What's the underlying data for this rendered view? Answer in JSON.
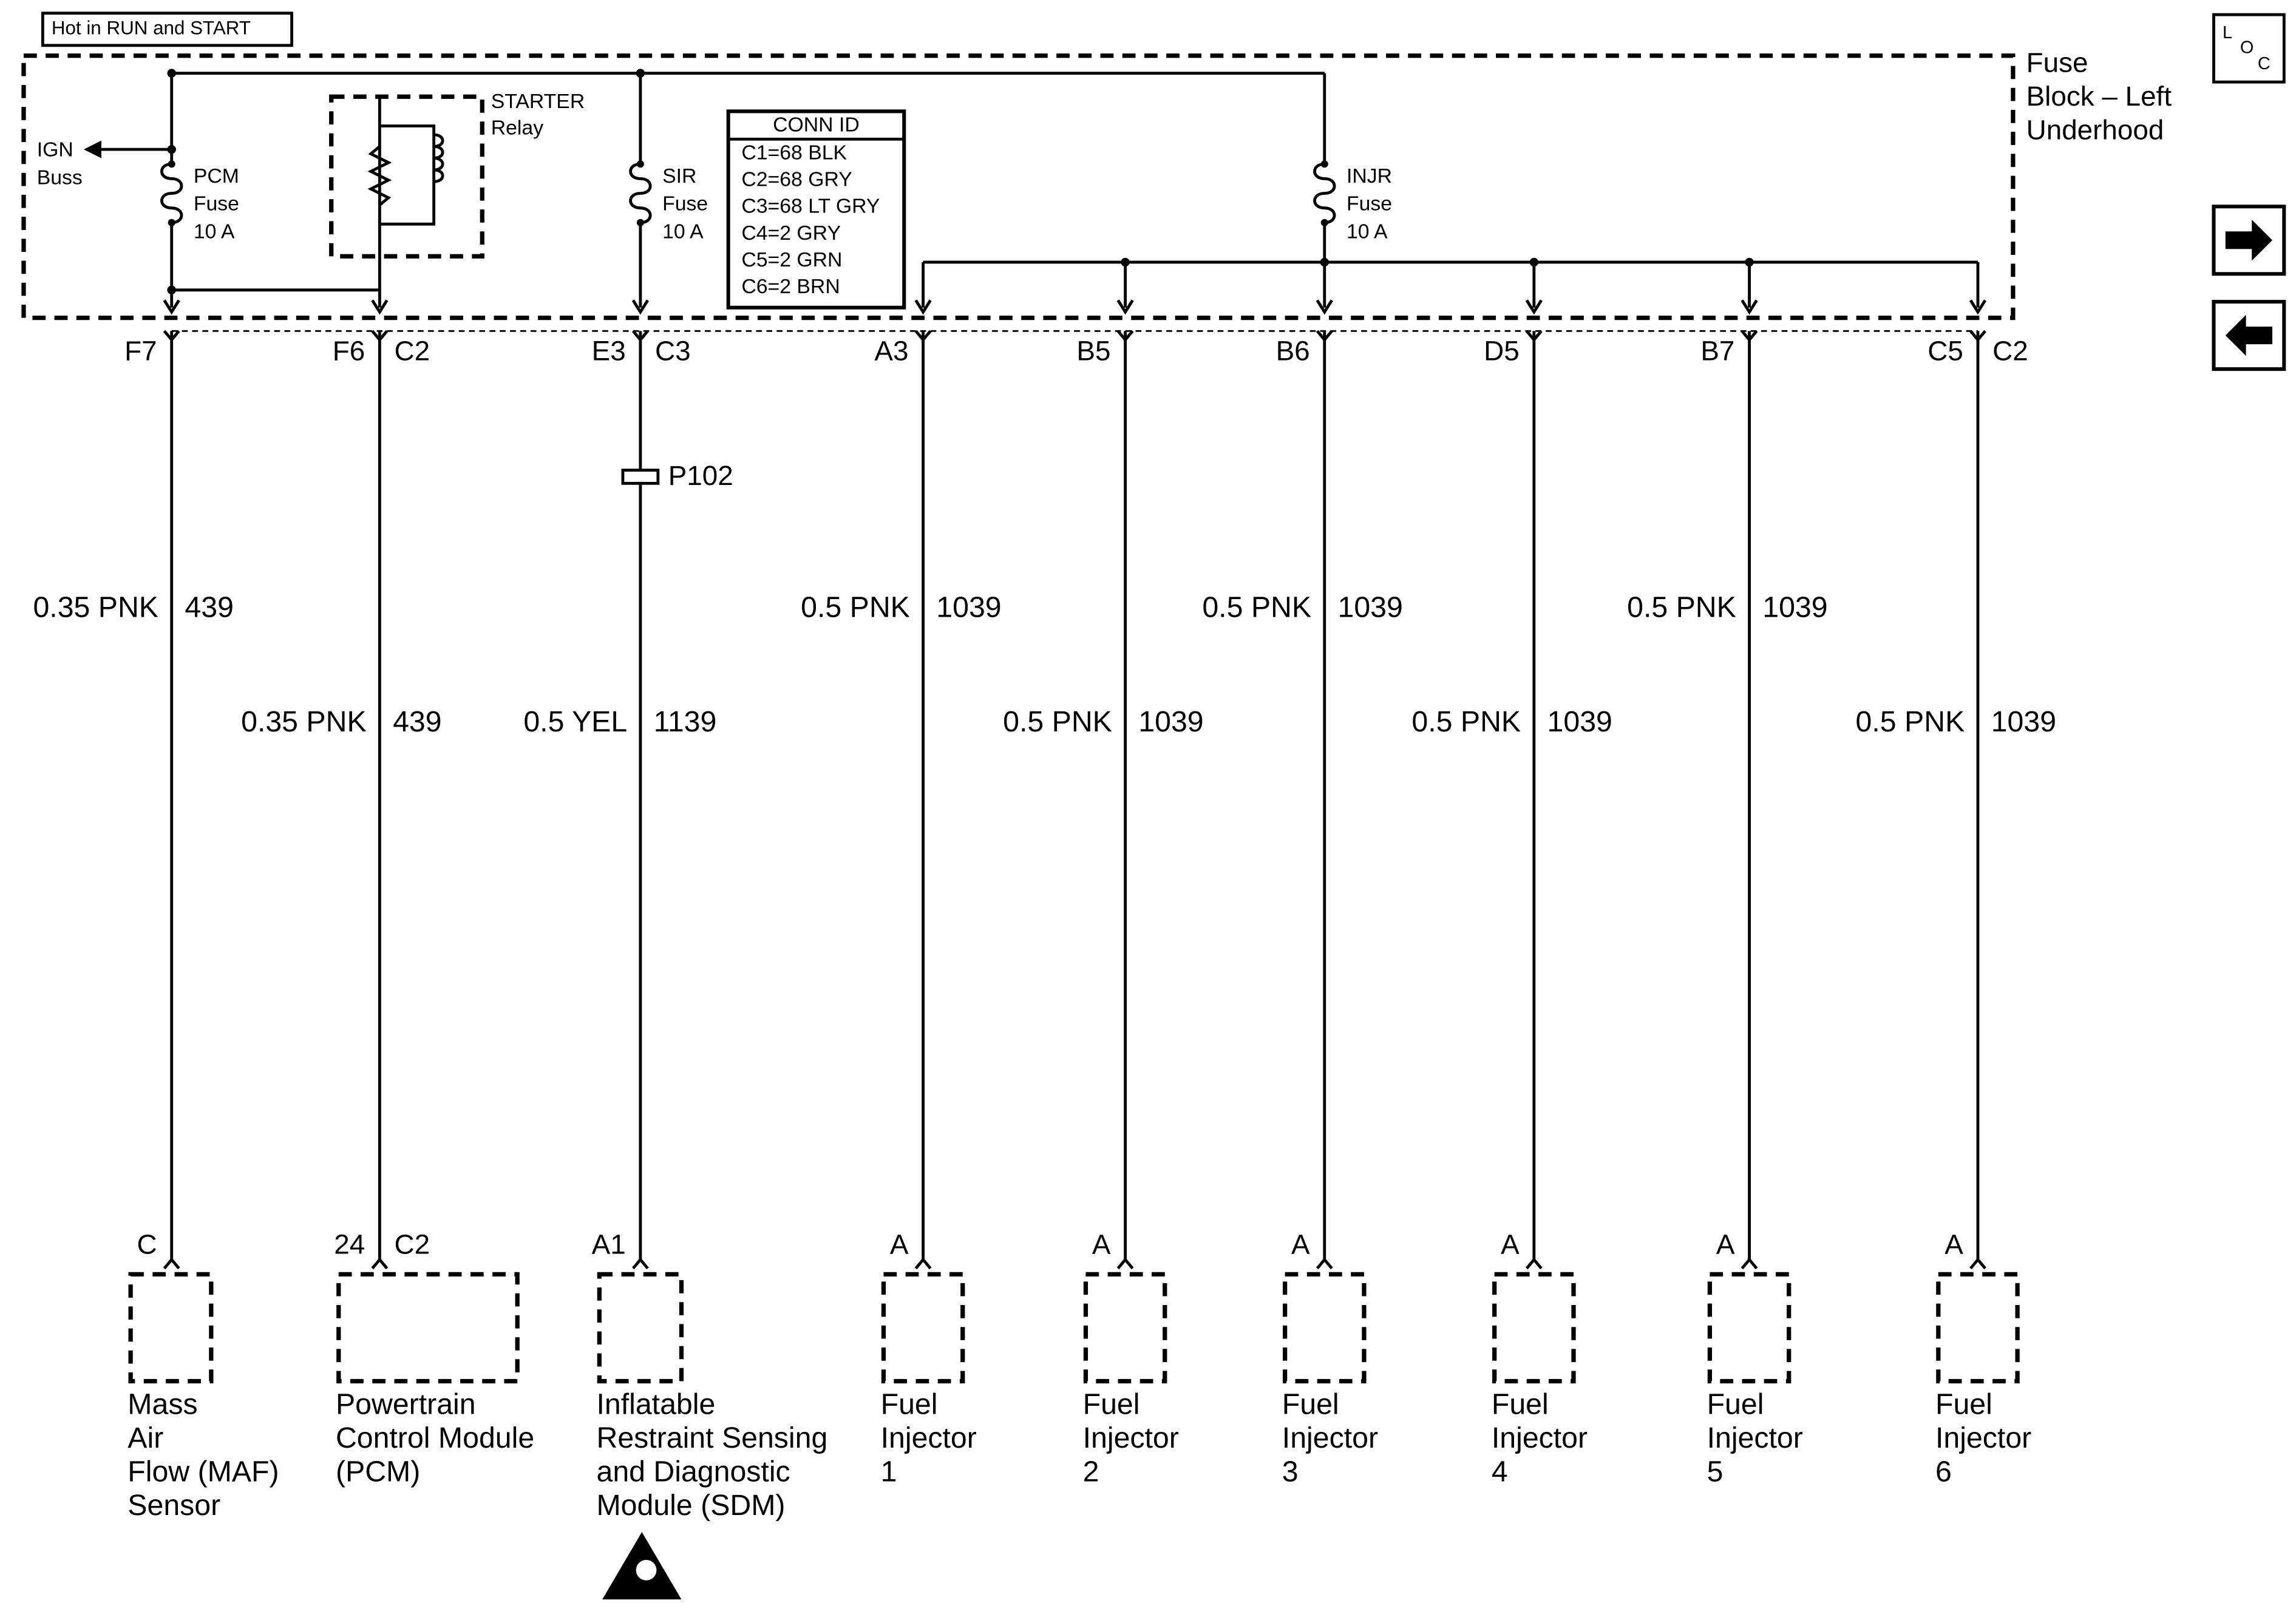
{
  "header": {
    "power_label": "Hot in RUN and START",
    "loc_icon": [
      "L",
      "O",
      "C"
    ]
  },
  "fuse_block": {
    "name": [
      "Fuse",
      "Block – Left",
      "Underhood"
    ]
  },
  "ign_buss": [
    "IGN",
    "Buss"
  ],
  "relay": [
    "STARTER",
    "Relay"
  ],
  "fuses": [
    {
      "name": "PCM",
      "type": "Fuse",
      "rating": "10 A"
    },
    {
      "name": "SIR",
      "type": "Fuse",
      "rating": "10 A"
    },
    {
      "name": "INJR",
      "type": "Fuse",
      "rating": "10 A"
    }
  ],
  "conn_id": {
    "title": "CONN ID",
    "rows": [
      "C1=68 BLK",
      "C2=68 GRY",
      "C3=68 LT GRY",
      "C4=2 GRY",
      "C5=2 GRN",
      "C6=2 BRN"
    ]
  },
  "splice": "P102",
  "circuits": [
    {
      "fuse_pin": "F7",
      "wire": "0.35 PNK",
      "circuit": "439",
      "comp_pin": "C",
      "component": [
        "Mass",
        "Air",
        "Flow (MAF)",
        "Sensor"
      ]
    },
    {
      "fuse_pin": "F6",
      "fuse_conn": "C2",
      "wire": "0.35 PNK",
      "circuit": "439",
      "comp_pin": "24",
      "comp_conn": "C2",
      "component": [
        "Powertrain",
        "Control Module",
        "(PCM)"
      ]
    },
    {
      "fuse_pin": "E3",
      "fuse_conn": "C3",
      "wire": "0.5 YEL",
      "circuit": "1139",
      "comp_pin": "A1",
      "component": [
        "Inflatable",
        "Restraint Sensing",
        "and Diagnostic",
        "Module (SDM)"
      ]
    },
    {
      "fuse_pin": "A3",
      "wire": "0.5 PNK",
      "circuit": "1039",
      "comp_pin": "A",
      "component": [
        "Fuel",
        "Injector",
        "1"
      ]
    },
    {
      "fuse_pin": "B5",
      "wire": "0.5 PNK",
      "circuit": "1039",
      "comp_pin": "A",
      "component": [
        "Fuel",
        "Injector",
        "2"
      ]
    },
    {
      "fuse_pin": "B6",
      "wire": "0.5 PNK",
      "circuit": "1039",
      "comp_pin": "A",
      "component": [
        "Fuel",
        "Injector",
        "3"
      ]
    },
    {
      "fuse_pin": "D5",
      "wire": "0.5 PNK",
      "circuit": "1039",
      "comp_pin": "A",
      "component": [
        "Fuel",
        "Injector",
        "4"
      ]
    },
    {
      "fuse_pin": "B7",
      "wire": "0.5 PNK",
      "circuit": "1039",
      "comp_pin": "A",
      "component": [
        "Fuel",
        "Injector",
        "5"
      ]
    },
    {
      "fuse_pin": "C5",
      "fuse_conn": "C2",
      "wire": "0.5 PNK",
      "circuit": "1039",
      "comp_pin": "A",
      "component": [
        "Fuel",
        "Injector",
        "6"
      ]
    }
  ]
}
